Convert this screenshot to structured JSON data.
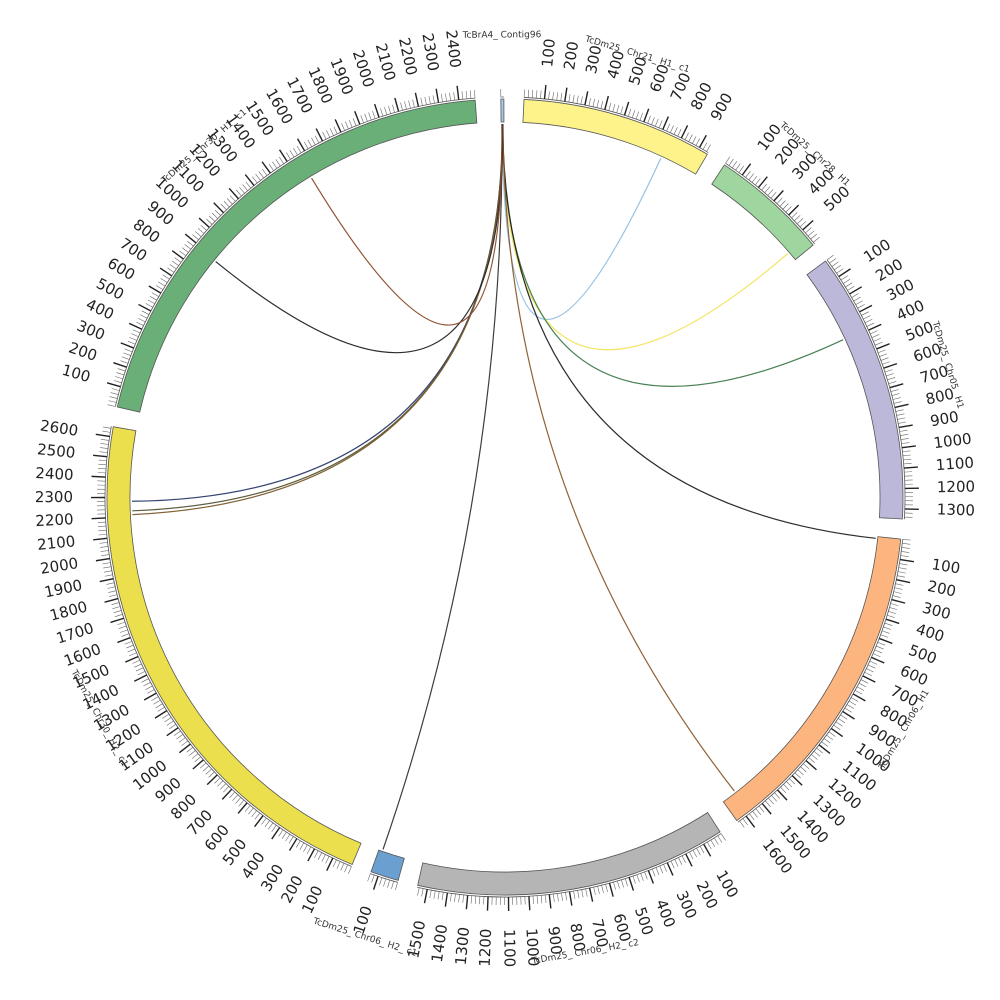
{
  "segments": [
    {
      "name": "TcBrA4_ Contig96",
      "length": 15,
      "color": "#a6c8e6",
      "ticks": []
    },
    {
      "name": "TcDm25_ Chr21_ H1_ c1",
      "length": 950,
      "color": "#fdf38a",
      "ticks": [
        "100",
        "200",
        "300",
        "400",
        "500",
        "600",
        "700",
        "800",
        "900"
      ]
    },
    {
      "name": "TcDm25_ Chr28_ H1",
      "length": 590,
      "color": "#9fd69f",
      "ticks": [
        "100",
        "200",
        "300",
        "400",
        "500"
      ]
    },
    {
      "name": "TcDm25_ Chr05_ H1",
      "length": 1350,
      "color": "#bcb8d9",
      "ticks": [
        "100",
        "200",
        "300",
        "400",
        "500",
        "600",
        "700",
        "800",
        "900",
        "1000",
        "1100",
        "1200",
        "1300"
      ]
    },
    {
      "name": "TcDm25_ Chr06_ H1",
      "length": 1650,
      "color": "#fdb57f",
      "ticks": [
        "100",
        "200",
        "300",
        "400",
        "500",
        "600",
        "700",
        "800",
        "900",
        "1000",
        "1100",
        "1200",
        "1300",
        "1400",
        "1500",
        "1600"
      ]
    },
    {
      "name": "TcDm25_ Chr06_ H2_ c2",
      "length": 1550,
      "color": "#b5b5b5",
      "ticks": [
        "100",
        "200",
        "300",
        "400",
        "500",
        "600",
        "700",
        "800",
        "900",
        "1000",
        "1100",
        "1200",
        "1300",
        "1400",
        "1500"
      ]
    },
    {
      "name": "TcDm25_ Chr06_ H2_ c1",
      "length": 140,
      "color": "#6b9fcf",
      "ticks": [
        "100"
      ]
    },
    {
      "name": "TcDm25_ Chr30_ H2_ c1",
      "length": 2650,
      "color": "#ebdf4d",
      "ticks": [
        "100",
        "200",
        "300",
        "400",
        "500",
        "600",
        "700",
        "800",
        "900",
        "1000",
        "1100",
        "1200",
        "1300",
        "1400",
        "1500",
        "1600",
        "1700",
        "1800",
        "1900",
        "2000",
        "2100",
        "2200",
        "2300",
        "2400",
        "2500",
        "2600"
      ]
    },
    {
      "name": "TcDm25_ Chr30_ H1_ c1",
      "length": 2480,
      "color": "#6aae78",
      "ticks": [
        "100",
        "200",
        "300",
        "400",
        "500",
        "600",
        "700",
        "800",
        "900",
        "1000",
        "1100",
        "1200",
        "1300",
        "1400",
        "1500",
        "1600",
        "1700",
        "1800",
        "1900",
        "2000",
        "2100",
        "2200",
        "2300",
        "2400"
      ]
    }
  ],
  "links": [
    {
      "from": "TcBrA4_ Contig96",
      "to": "TcDm25_ Chr21_ H1_ c1",
      "to_pos": 750,
      "color": "#8fbfe0"
    },
    {
      "from": "TcBrA4_ Contig96",
      "to": "TcDm25_ Chr28_ H1",
      "to_pos": 540,
      "color": "#f3e35a"
    },
    {
      "from": "TcBrA4_ Contig96",
      "to": "TcDm25_ Chr05_ H1",
      "to_pos": 390,
      "color": "#3d7a4c"
    },
    {
      "from": "TcBrA4_ Contig96",
      "to": "TcDm25_ Chr06_ H1",
      "to_pos": 10,
      "color": "#222222"
    },
    {
      "from": "TcBrA4_ Contig96",
      "to": "TcDm25_ Chr06_ H1",
      "to_pos": 1570,
      "color": "#8a5a2a"
    },
    {
      "from": "TcBrA4_ Contig96",
      "to": "TcDm25_ Chr06_ H2_ c1",
      "to_pos": 120,
      "color": "#333333"
    },
    {
      "from": "TcBrA4_ Contig96",
      "to": "TcDm25_ Chr30_ H2_ c1",
      "to_pos": 2280,
      "color": "#2a3a6a"
    },
    {
      "from": "TcBrA4_ Contig96",
      "to": "TcDm25_ Chr30_ H2_ c1",
      "to_pos": 2230,
      "color": "#555533"
    },
    {
      "from": "TcBrA4_ Contig96",
      "to": "TcDm25_ Chr30_ H2_ c1",
      "to_pos": 2210,
      "color": "#7a5a2a"
    },
    {
      "from": "TcBrA4_ Contig96",
      "to": "TcDm25_ Chr30_ H1_ c1",
      "to_pos": 890,
      "color": "#222222"
    },
    {
      "from": "TcBrA4_ Contig96",
      "to": "TcDm25_ Chr30_ H1_ c1",
      "to_pos": 1560,
      "color": "#8a4a2a"
    }
  ]
}
